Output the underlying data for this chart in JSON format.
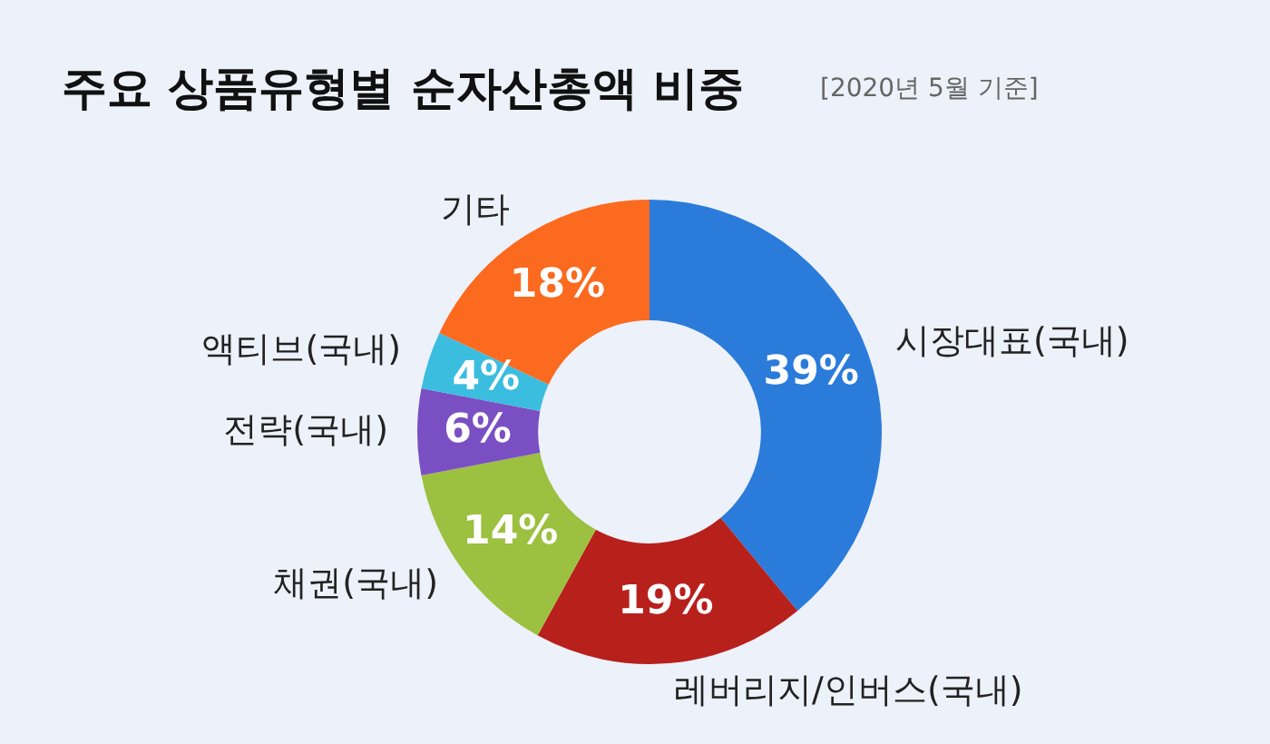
{
  "chart_data": {
    "type": "donut",
    "title": "주요 상품유형별 순자산총액 비중",
    "subtitle": "[2020년 5월 기준]",
    "categories": [
      "시장대표(국내)",
      "레버리지/인버스(국내)",
      "채권(국내)",
      "전략(국내)",
      "액티브(국내)",
      "기타"
    ],
    "values": [
      39,
      19,
      14,
      6,
      4,
      18
    ],
    "colors": [
      "#2b7bdb",
      "#b8201c",
      "#9cc03f",
      "#7b4fc4",
      "#3bbde0",
      "#fb6a1e"
    ],
    "value_labels": [
      "39%",
      "19%",
      "14%",
      "6%",
      "4%",
      "18%"
    ],
    "legend": false
  }
}
